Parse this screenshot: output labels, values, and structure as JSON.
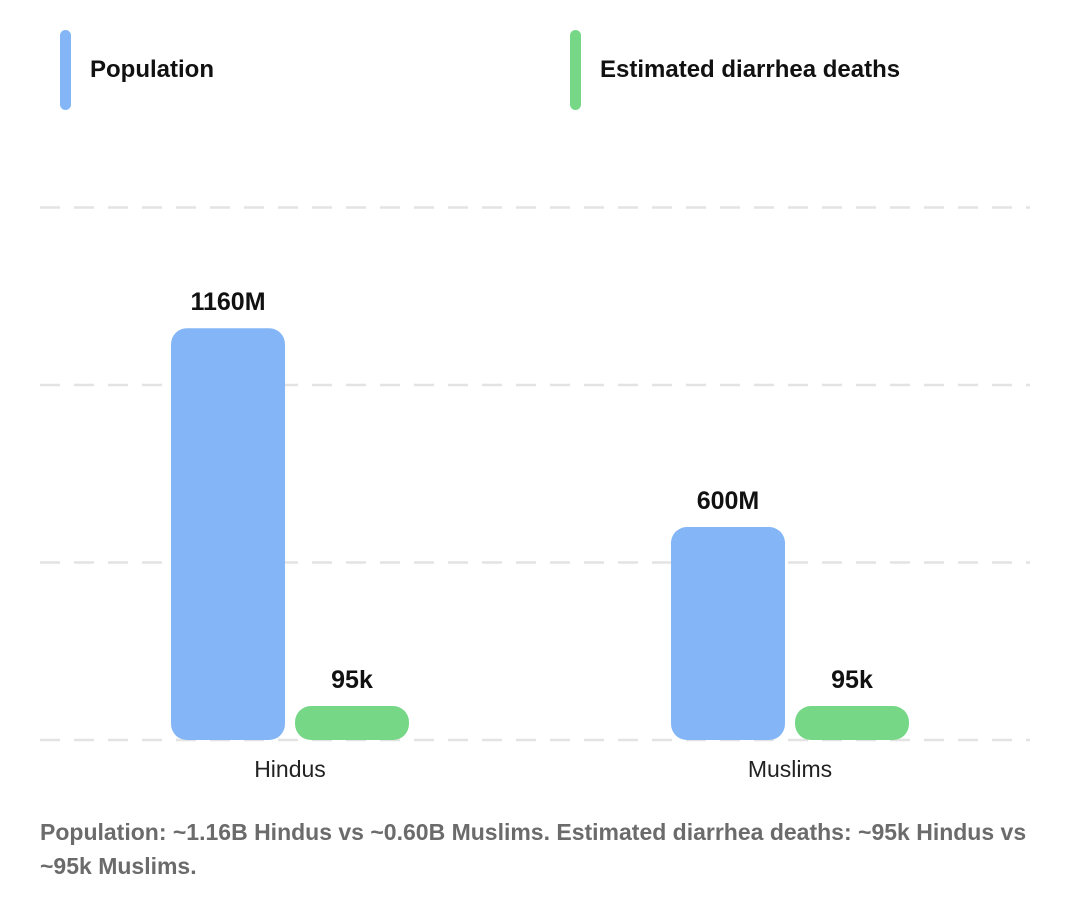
{
  "chart_data": {
    "type": "bar",
    "categories": [
      "Hindus",
      "Muslims"
    ],
    "series": [
      {
        "name": "Population",
        "values": [
          1160,
          600
        ],
        "labels": [
          "1160M",
          "600M"
        ],
        "color": "#84b6f7"
      },
      {
        "name": "Estimated diarrhea deaths",
        "values": [
          95,
          95
        ],
        "labels": [
          "95k",
          "95k"
        ],
        "color": "#76d887"
      }
    ],
    "ylim": [
      0,
      2000
    ],
    "yticks": [
      0,
      500,
      1000,
      1500
    ],
    "grid": true,
    "grid_style": "dashed",
    "legend_position": "top",
    "title": "",
    "xlabel": "",
    "ylabel": ""
  },
  "caption": "Population: ~1.16B Hindus vs ~0.60B Muslims. Estimated diarrhea deaths: ~95k Hindus vs ~95k Muslims."
}
